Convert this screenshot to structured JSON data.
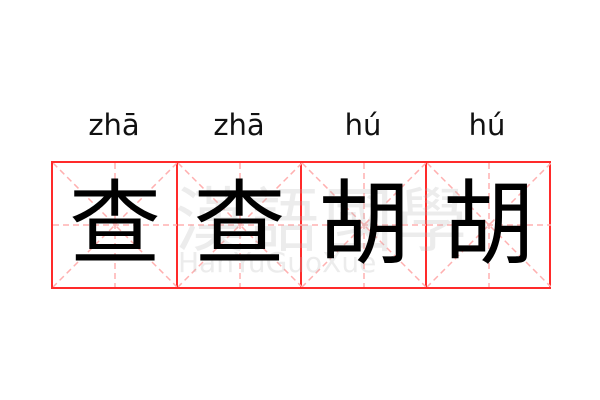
{
  "syllables": [
    {
      "pinyin": "zhā",
      "char": "查"
    },
    {
      "pinyin": "zhā",
      "char": "查"
    },
    {
      "pinyin": "hú",
      "char": "胡"
    },
    {
      "pinyin": "hú",
      "char": "胡"
    }
  ],
  "watermark": {
    "chinese": "漢語國學",
    "latin": "HanYuGuoXue"
  },
  "colors": {
    "grid_border": "#ff2a2a",
    "guide_lines": "#ffb0b0"
  }
}
